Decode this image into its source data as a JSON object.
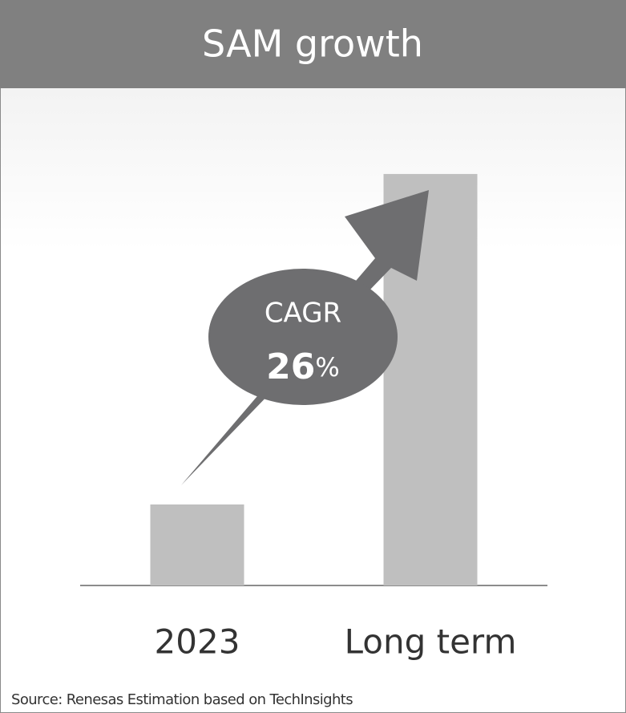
{
  "chart_data": {
    "type": "bar",
    "title": "SAM growth",
    "categories": [
      "2023",
      "Long term"
    ],
    "values": [
      1,
      5.08
    ],
    "color": "#bfbfbf",
    "ylim": [
      0,
      6
    ],
    "annotation": {
      "label": "CAGR",
      "value": 26,
      "unit": "%"
    },
    "source": "Source: Renesas Estimation based on TechInsights"
  }
}
